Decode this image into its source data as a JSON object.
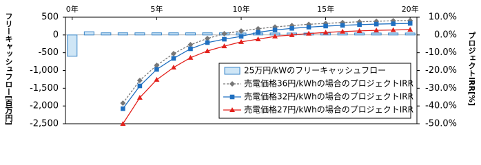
{
  "chart_data": {
    "type": "combo",
    "y_label": "フリーキャッシュフロー[百万円]",
    "y2_label": "プロジェクトIRR[%]",
    "x": [
      0,
      1,
      2,
      3,
      4,
      5,
      6,
      7,
      8,
      9,
      10,
      11,
      12,
      13,
      14,
      15,
      16,
      17,
      18,
      19,
      20
    ],
    "xlim": [
      -0.4,
      20.4
    ],
    "xticks": [
      {
        "value": 0,
        "label": "0年"
      },
      {
        "value": 5,
        "label": "5年"
      },
      {
        "value": 10,
        "label": "10年"
      },
      {
        "value": 15,
        "label": "15年"
      },
      {
        "value": 20,
        "label": "20年"
      }
    ],
    "ylim": [
      -2500,
      500
    ],
    "yticks": [
      500,
      0,
      -500,
      {
        "value": -1000,
        "label": "-1,000"
      },
      {
        "value": -1500,
        "label": "-1,500"
      },
      {
        "value": -2000,
        "label": "-2,000"
      },
      {
        "value": -2500,
        "label": "-2,500"
      }
    ],
    "y2lim": [
      -50,
      10
    ],
    "y2ticks": [
      {
        "value": 10,
        "label": "10.0%"
      },
      {
        "value": 0,
        "label": "0.0%"
      },
      {
        "value": -10,
        "label": "-10.0%"
      },
      {
        "value": -20,
        "label": "-20.0%"
      },
      {
        "value": -30,
        "label": "-30.0%"
      },
      {
        "value": -40,
        "label": "-40.0%"
      },
      {
        "value": -50,
        "label": "-50.0%"
      }
    ],
    "series": [
      {
        "name": "25万円/kWのフリーキャッシュフロー",
        "type": "bar",
        "color": "#cfe6f6",
        "stroke": "#3a86c8",
        "values": [
          -600,
          90,
          60,
          60,
          60,
          60,
          60,
          60,
          60,
          60,
          55,
          55,
          55,
          55,
          55,
          55,
          55,
          55,
          55,
          55,
          55
        ]
      },
      {
        "name": "売電価格36円/kWhの場合のプロジェクトIRR",
        "type": "line",
        "axis": "y2",
        "color": "#777777",
        "marker": "diamond",
        "dashed": true,
        "values": [
          null,
          null,
          null,
          -38.4,
          -25.6,
          -17.1,
          -10.5,
          -5.5,
          -2.0,
          0.7,
          2.2,
          3.5,
          4.5,
          5.3,
          6.0,
          6.5,
          7.0,
          7.4,
          7.7,
          8.0,
          8.1
        ]
      },
      {
        "name": "売電価格32円/kWhの場合のプロジェクトIRR",
        "type": "line",
        "axis": "y2",
        "color": "#1f6fc0",
        "marker": "square",
        "dashed": false,
        "values": [
          null,
          null,
          null,
          -41.5,
          -28.7,
          -19.4,
          -13.2,
          -7.8,
          -4.3,
          -2.4,
          -0.8,
          1.5,
          2.8,
          3.7,
          4.4,
          5.0,
          5.4,
          5.8,
          6.1,
          6.3,
          6.5
        ]
      },
      {
        "name": "売電価格27円/kWhの場合のプロジェクトIRR",
        "type": "line",
        "axis": "y2",
        "color": "#e3211c",
        "marker": "triangle",
        "dashed": false,
        "values": [
          null,
          null,
          null,
          -50,
          -35.3,
          -25.2,
          -18.3,
          -12.8,
          -9.0,
          -6.3,
          -3.9,
          -2.4,
          -0.8,
          0.0,
          0.8,
          1.4,
          1.9,
          2.3,
          2.6,
          2.8,
          3.0
        ]
      }
    ]
  }
}
